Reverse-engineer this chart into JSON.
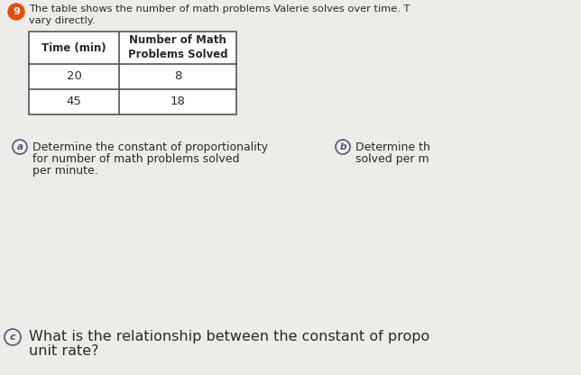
{
  "bg_color": "#eeece8",
  "title_line1": "The table shows the number of math problems Valerie solves over time. T",
  "title_line2": "vary directly.",
  "table_headers": [
    "Time (min)",
    "Number of Math\nProblems Solved"
  ],
  "table_rows": [
    [
      "20",
      "8"
    ],
    [
      "45",
      "18"
    ]
  ],
  "part_a_circle": "a",
  "part_a_text_line1": "Determine the constant of proportionality",
  "part_a_text_line2": "for number of math problems solved",
  "part_a_text_line3": "per minute.",
  "part_b_circle": "b",
  "part_b_text_line1": "Determine th",
  "part_b_text_line2": "solved per m",
  "part_c_circle": "c",
  "part_c_text": "What is the relationship between the constant of propo",
  "part_c_text2": "unit rate?",
  "bullet_number": "9",
  "font_color": "#2a2a2a",
  "table_border_color": "#555555",
  "table_bg": "#ffffff",
  "circle_color": "#555577",
  "bullet_bg": "#e05010"
}
